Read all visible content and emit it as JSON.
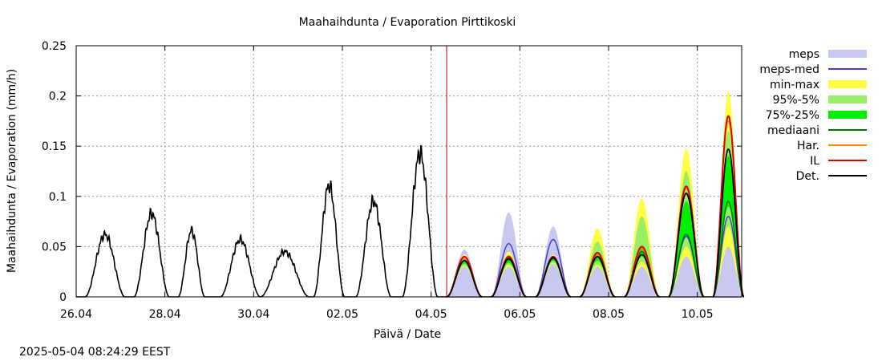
{
  "chart_data": {
    "type": "area",
    "title": "Maahaihdunta / Evaporation  Pirttikoski",
    "xlabel": "Päivä / Date",
    "ylabel": "Maahaihdunta / Evaporation (mm/h)",
    "timestamp": "2025-05-04 08:24:29 EEST",
    "x_unit": "days since 26.04 00:00",
    "xlim": [
      0,
      15
    ],
    "ylim": [
      0,
      0.25
    ],
    "y_ticks": [
      0,
      0.05,
      0.1,
      0.15,
      0.2,
      0.25
    ],
    "y_tick_labels": [
      "0",
      "0.05",
      "0.1",
      "0.15",
      "0.2",
      "0.25"
    ],
    "x_ticks": [
      0,
      2,
      4,
      6,
      8,
      10,
      12,
      14
    ],
    "x_tick_labels": [
      "26.04",
      "28.04",
      "30.04",
      "02.05",
      "04.05",
      "06.05",
      "08.05",
      "10.05"
    ],
    "grid": true,
    "forecast_start": 8.35,
    "legend_position": "right",
    "colors": {
      "meps": "#c8c8f0",
      "meps_med": "#4040dd",
      "minmax": "#ffff44",
      "p95_5": "#99f066",
      "p75_25": "#00ee00",
      "mediaani": "#007700",
      "har": "#ff8800",
      "il": "#dd0000",
      "det": "#000000",
      "forecast_line": "#aa0000"
    },
    "legend": [
      {
        "key": "meps",
        "label": "meps",
        "kind": "band"
      },
      {
        "key": "meps_med",
        "label": "meps-med",
        "kind": "line"
      },
      {
        "key": "minmax",
        "label": "min-max",
        "kind": "band"
      },
      {
        "key": "p95_5",
        "label": "95%-5%",
        "kind": "band"
      },
      {
        "key": "p75_25",
        "label": "75%-25%",
        "kind": "band"
      },
      {
        "key": "mediaani",
        "label": "mediaani",
        "kind": "line"
      },
      {
        "key": "har",
        "label": "Har.",
        "kind": "line"
      },
      {
        "key": "il",
        "label": "IL",
        "kind": "line"
      },
      {
        "key": "det",
        "label": "Det.",
        "kind": "line"
      }
    ],
    "observed_daily_peaks": [
      {
        "center": 0.65,
        "width": 0.45,
        "peak": 0.062
      },
      {
        "center": 1.7,
        "width": 0.4,
        "peak": 0.083
      },
      {
        "center": 2.6,
        "width": 0.3,
        "peak": 0.066
      },
      {
        "center": 3.7,
        "width": 0.45,
        "peak": 0.057
      },
      {
        "center": 4.7,
        "width": 0.55,
        "peak": 0.045
      },
      {
        "center": 5.7,
        "width": 0.35,
        "peak": 0.111
      },
      {
        "center": 6.7,
        "width": 0.4,
        "peak": 0.095
      },
      {
        "center": 7.75,
        "width": 0.4,
        "peak": 0.143
      }
    ],
    "forecast_days": [
      {
        "center": 8.75,
        "width": 0.4,
        "meps_max": 0.047,
        "meps_med": 0.04,
        "minmax": [
          0.03,
          0.042
        ],
        "p95_5": [
          0.031,
          0.04
        ],
        "p75_25": [
          0.033,
          0.038
        ],
        "mediaani": 0.036,
        "har": 0.038,
        "il": 0.04,
        "det": 0.036
      },
      {
        "center": 9.75,
        "width": 0.4,
        "meps_max": 0.084,
        "meps_med": 0.053,
        "minmax": [
          0.03,
          0.045
        ],
        "p95_5": [
          0.032,
          0.042
        ],
        "p75_25": [
          0.034,
          0.04
        ],
        "mediaani": 0.037,
        "har": 0.039,
        "il": 0.04,
        "det": 0.038
      },
      {
        "center": 10.75,
        "width": 0.4,
        "meps_max": 0.07,
        "meps_med": 0.057,
        "minmax": [
          0.033,
          0.042
        ],
        "p95_5": [
          0.034,
          0.041
        ],
        "p75_25": [
          0.036,
          0.04
        ],
        "mediaani": 0.038,
        "har": 0.039,
        "il": 0.04,
        "det": 0.039
      },
      {
        "center": 11.75,
        "width": 0.4,
        "meps_max": 0.06,
        "meps_med": 0.042,
        "minmax": [
          0.03,
          0.068
        ],
        "p95_5": [
          0.032,
          0.055
        ],
        "p75_25": [
          0.036,
          0.044
        ],
        "mediaani": 0.04,
        "har": 0.042,
        "il": 0.044,
        "det": 0.04
      },
      {
        "center": 12.75,
        "width": 0.4,
        "meps_max": 0.07,
        "meps_med": 0.048,
        "minmax": [
          0.03,
          0.098
        ],
        "p95_5": [
          0.035,
          0.08
        ],
        "p75_25": [
          0.04,
          0.05
        ],
        "mediaani": 0.045,
        "har": 0.048,
        "il": 0.05,
        "det": 0.042
      },
      {
        "center": 13.75,
        "width": 0.4,
        "meps_max": 0.08,
        "meps_med": 0.06,
        "minmax": [
          0.04,
          0.148
        ],
        "p95_5": [
          0.05,
          0.125
        ],
        "p75_25": [
          0.062,
          0.095
        ],
        "mediaani": 0.062,
        "har": 0.108,
        "il": 0.11,
        "det": 0.103
      },
      {
        "center": 14.7,
        "width": 0.35,
        "meps_max": 0.1,
        "meps_med": 0.08,
        "minmax": [
          0.05,
          0.205
        ],
        "p95_5": [
          0.07,
          0.165
        ],
        "p75_25": [
          0.09,
          0.14
        ],
        "mediaani": 0.095,
        "har": 0.175,
        "il": 0.18,
        "det": 0.147
      }
    ]
  }
}
